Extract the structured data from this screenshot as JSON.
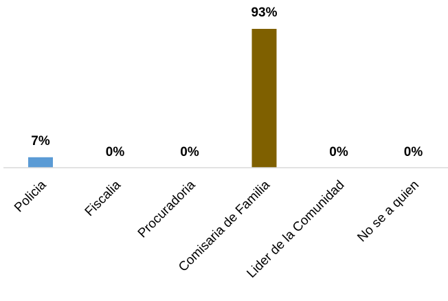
{
  "chart_data": {
    "type": "bar",
    "categories": [
      "Policia",
      "Fiscalia",
      "Procuradoria",
      "Comisaria de Familia",
      "Lider de la Comunidad",
      "No se a quien"
    ],
    "values": [
      7,
      0,
      0,
      93,
      0,
      0
    ],
    "data_labels": [
      "7%",
      "0%",
      "0%",
      "93%",
      "0%",
      "0%"
    ],
    "bar_colors": [
      "#5b9bd5",
      "#7f6000",
      "#7f6000",
      "#7f6000",
      "#7f6000",
      "#7f6000"
    ],
    "axis_color": "#d9d9d9",
    "ylim": [
      0,
      93
    ],
    "grid": false,
    "legend": "none"
  }
}
